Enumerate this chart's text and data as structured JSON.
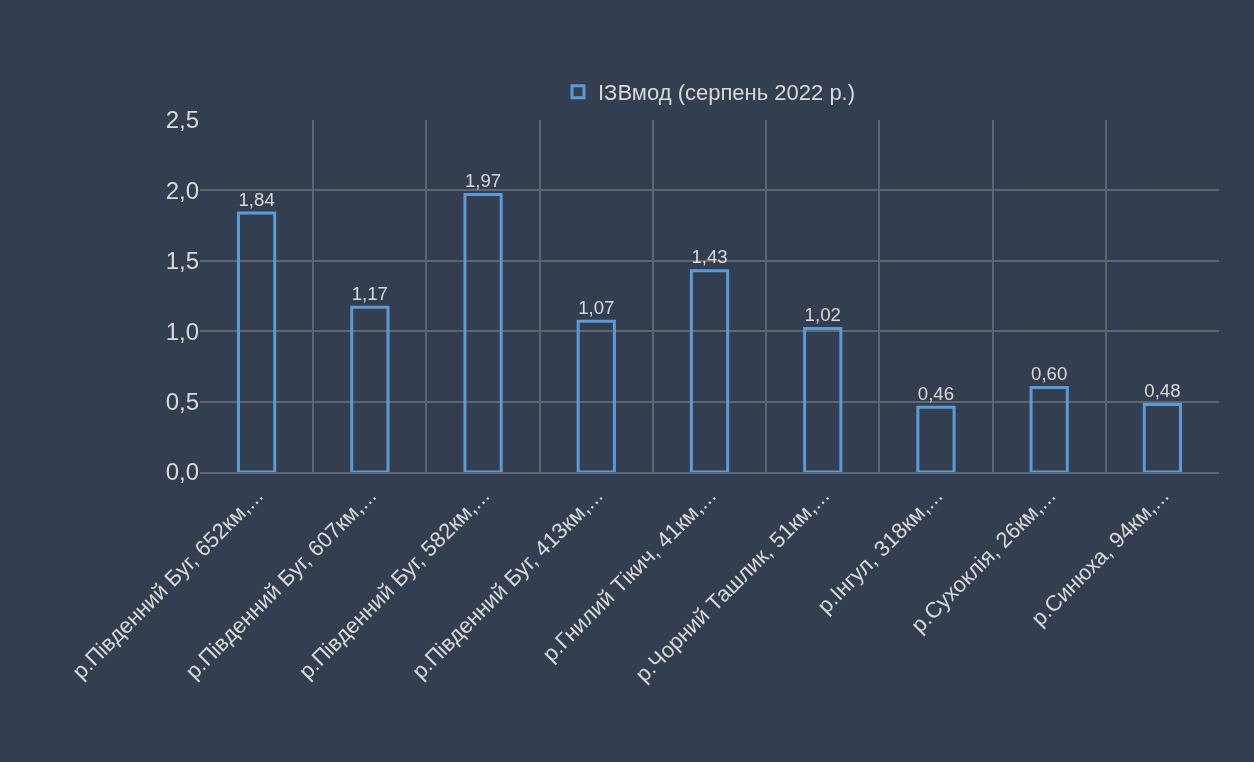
{
  "chart_data": {
    "type": "bar",
    "categories": [
      "р.Південний Буг, 652км,...",
      "р.Південний Буг, 607км,...",
      "р.Південний Буг, 582км,...",
      "р.Південний Буг, 413км,...",
      "р.Гнилий Тікич, 41км,...",
      "р.Чорний Ташлик, 51км,...",
      "р.Інгул, 318км,...",
      "р.Сухоклія, 26км,...",
      "р.Синюха, 94км,..."
    ],
    "series": [
      {
        "name": "ІЗВмод (серпень 2022 р.)",
        "color": "#5b9bd5",
        "values": [
          1.84,
          1.17,
          1.97,
          1.07,
          1.43,
          1.02,
          0.46,
          0.6,
          0.48
        ],
        "value_labels": [
          "1,84",
          "1,17",
          "1,97",
          "1,07",
          "1,43",
          "1,02",
          "0,46",
          "0,60",
          "0,48"
        ]
      }
    ],
    "ylim": [
      0,
      2.5
    ],
    "yticks": [
      {
        "value": 0,
        "label": "0,0"
      },
      {
        "value": 0.5,
        "label": "0,5"
      },
      {
        "value": 1,
        "label": "1,0"
      },
      {
        "value": 1.5,
        "label": "1,5"
      },
      {
        "value": 2,
        "label": "2,0"
      },
      {
        "value": 2.5,
        "label": "2,5"
      }
    ],
    "grid": true,
    "legend": "top"
  }
}
